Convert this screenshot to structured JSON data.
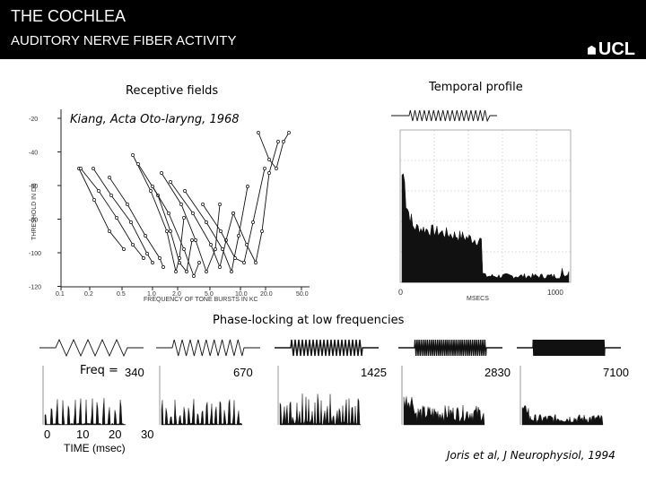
{
  "slide": {
    "title": "THE COCHLEA",
    "subtitle": "AUDITORY NERVE FIBER ACTIVITY",
    "logo_text": "UCL"
  },
  "receptive": {
    "heading": "Receptive fields",
    "citation": "Kiang, Acta Oto-laryng, 1968",
    "ylabel": "THRESHOLD IN DB",
    "xlabel": "FREQUENCY OF TONE BURSTS IN KC",
    "y_ticks": [
      "-20",
      "-40",
      "-60",
      "-80",
      "-100",
      "-120"
    ],
    "x_ticks": [
      "0.1",
      "0.2",
      "0.5",
      "1.0",
      "2.0",
      "5.0",
      "10.0",
      "20.0",
      "50.0"
    ]
  },
  "temporal": {
    "heading": "Temporal profile",
    "x_start": "0",
    "x_unit": "MSECS",
    "x_end": "1000"
  },
  "phase": {
    "heading": "Phase-locking at low frequencies",
    "freq_prefix": "Freq = ",
    "freqs": [
      "340",
      "670",
      "1425",
      "2830",
      "7100"
    ],
    "x_ticks": [
      "0",
      "10",
      "20",
      "30"
    ],
    "xlabel": "TIME (msec)",
    "citation": "Joris et al, J Neurophysiol, 1994"
  },
  "colors": {
    "header_bg": "#000000",
    "header_text": "#ffffff",
    "plot_ink": "#111111"
  }
}
